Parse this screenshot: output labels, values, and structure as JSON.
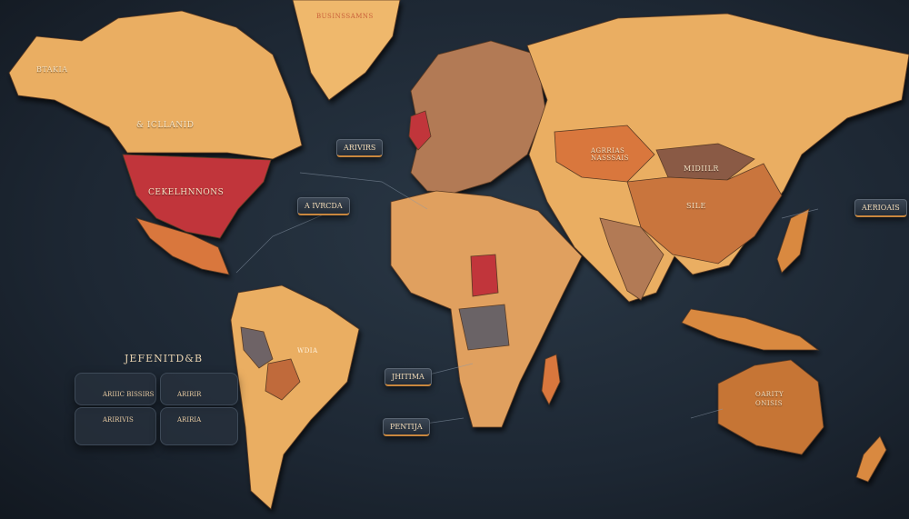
{
  "map": {
    "style": "stylized dark world map",
    "colors": {
      "ocean": "#1e2935",
      "land_light": "#eaae62",
      "land_orange": "#d9773c",
      "land_brown": "#8a5a45",
      "highlight_red": "#c1363a",
      "gray": "#6a6466",
      "accent": "#c9873e"
    },
    "region_labels": {
      "alaska": "BTAKIA",
      "canada": "& ICLLANID",
      "usa": "CEKELHNNONS",
      "greenland": "BUSINSSAMNS",
      "brazil": "WDIA",
      "kazakhstan": "AGRRIAS NASSSAIS",
      "mongolia": "MIDIILR",
      "china": "SILE",
      "australia_1": "OARITY",
      "australia_2": "ONISIS"
    },
    "callouts": [
      "ARIVIRS",
      "A IVRCDA",
      "AERIOAIS",
      "JHITIMA",
      "PENTIJA"
    ],
    "panel": {
      "title": "JEFENITD&B",
      "rows": [
        "ARIIIC BISSIRS",
        "ARIRIR",
        "ARIRIVIS",
        "ARIRIA"
      ]
    }
  }
}
